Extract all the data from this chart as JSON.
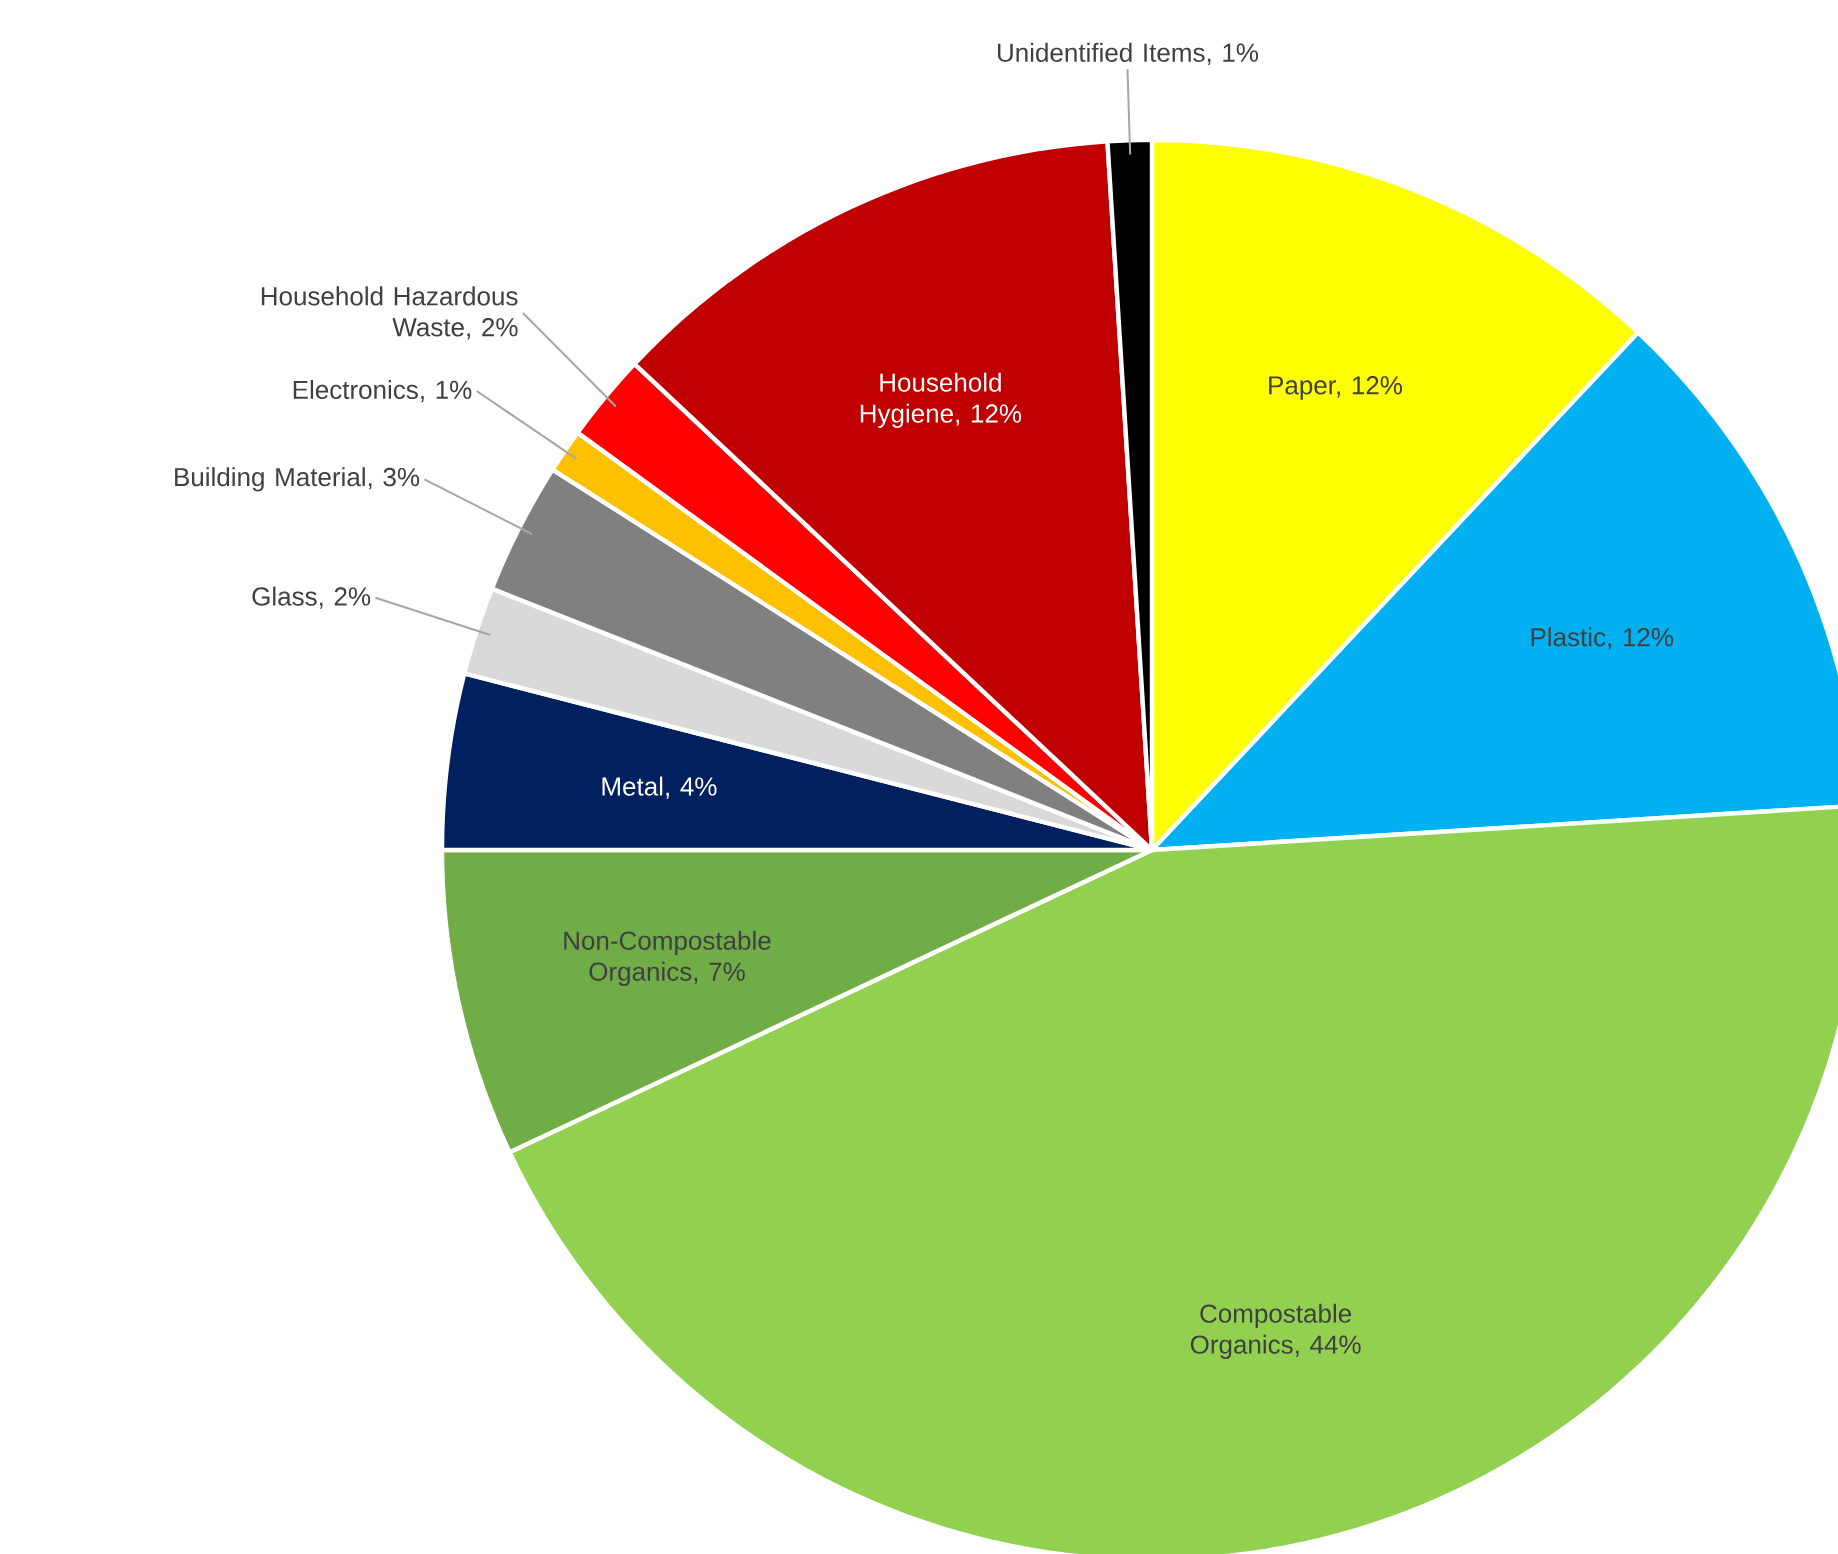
{
  "chart_data": {
    "type": "pie",
    "categories": [
      "Paper, 12%",
      "Plastic, 12%",
      "Compostable Organics, 44%",
      "Non-Compostable Organics, 7%",
      "Metal, 4%",
      "Glass, 2%",
      "Building Material, 3%",
      "Electronics, 1%",
      "Household Hazardous Waste, 2%",
      "Household Hygiene, 12%",
      "Unidentified Items, 1%"
    ],
    "values": [
      12,
      12,
      44,
      7,
      4,
      2,
      3,
      1,
      2,
      12,
      1
    ],
    "colors": [
      "#ffff00",
      "#00b0f0",
      "#92d050",
      "#70ad47",
      "#002060",
      "#d9d9d9",
      "#808080",
      "#ffc000",
      "#ff0000",
      "#c00000",
      "#000000"
    ]
  }
}
